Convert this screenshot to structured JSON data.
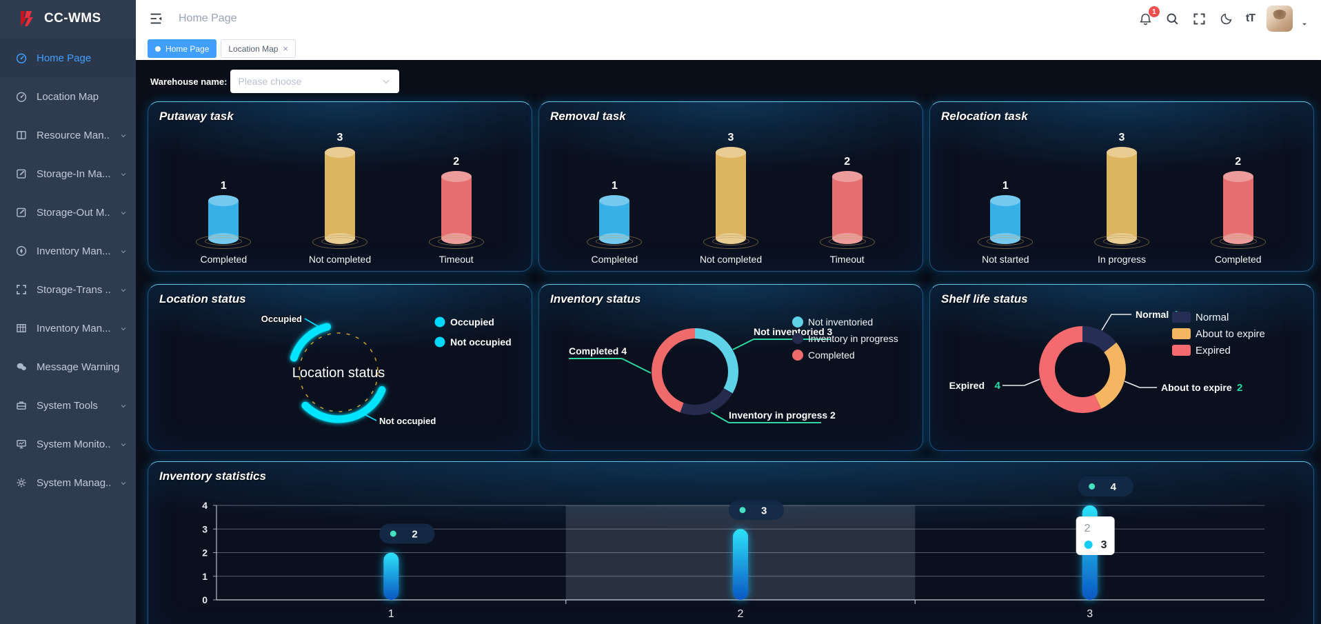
{
  "sidebar": {
    "logo_text": "CC-WMS",
    "items": [
      {
        "label": "Home Page",
        "icon": "gauge",
        "active": true,
        "expandable": false
      },
      {
        "label": "Location Map",
        "icon": "gauge",
        "active": false,
        "expandable": false
      },
      {
        "label": "Resource Man...",
        "icon": "book",
        "active": false,
        "expandable": true
      },
      {
        "label": "Storage-In Ma...",
        "icon": "edit",
        "active": false,
        "expandable": true
      },
      {
        "label": "Storage-Out M...",
        "icon": "edit",
        "active": false,
        "expandable": true
      },
      {
        "label": "Inventory Man...",
        "icon": "compass",
        "active": false,
        "expandable": true
      },
      {
        "label": "Storage-Trans ...",
        "icon": "expand",
        "active": false,
        "expandable": true
      },
      {
        "label": "Inventory Man...",
        "icon": "table",
        "active": false,
        "expandable": true
      },
      {
        "label": "Message Warning",
        "icon": "chat",
        "active": false,
        "expandable": false
      },
      {
        "label": "System Tools",
        "icon": "toolbox",
        "active": false,
        "expandable": true
      },
      {
        "label": "System Monito...",
        "icon": "monitor",
        "active": false,
        "expandable": true
      },
      {
        "label": "System Manag...",
        "icon": "gear",
        "active": false,
        "expandable": true
      }
    ]
  },
  "header": {
    "breadcrumb": "Home Page",
    "notification_count": "1",
    "font_size_icon_label": "tT"
  },
  "tabs": [
    {
      "label": "Home Page",
      "active": true,
      "closable": false
    },
    {
      "label": "Location Map",
      "active": false,
      "closable": true
    }
  ],
  "filter": {
    "label": "Warehouse name:",
    "placeholder": "Please choose"
  },
  "colors": {
    "accent": "#409eff",
    "sidebar_bg": "#2f3b4e",
    "panel_glow": "#1a9fd8",
    "badge_red": "#ef4f4f"
  },
  "chart_data": [
    {
      "id": "putaway_task",
      "type": "bar",
      "variant": "cylinder",
      "title": "Putaway task",
      "categories": [
        "Completed",
        "Not completed",
        "Timeout"
      ],
      "values": [
        1,
        3,
        2
      ],
      "ylim": [
        0,
        3
      ],
      "colors": [
        "#36b0e6",
        "#ddb45f",
        "#e56e6e"
      ]
    },
    {
      "id": "removal_task",
      "type": "bar",
      "variant": "cylinder",
      "title": "Removal task",
      "categories": [
        "Completed",
        "Not completed",
        "Timeout"
      ],
      "values": [
        1,
        3,
        2
      ],
      "ylim": [
        0,
        3
      ],
      "colors": [
        "#36b0e6",
        "#ddb45f",
        "#e56e6e"
      ]
    },
    {
      "id": "relocation_task",
      "type": "bar",
      "variant": "cylinder",
      "title": "Relocation task",
      "categories": [
        "Not started",
        "In progress",
        "Completed"
      ],
      "values": [
        1,
        3,
        2
      ],
      "ylim": [
        0,
        3
      ],
      "colors": [
        "#36b0e6",
        "#ddb45f",
        "#e56e6e"
      ]
    },
    {
      "id": "location_status",
      "type": "pie",
      "variant": "ring-arcs",
      "title": "Location status",
      "center_label": "Location status",
      "legend": [
        "Occupied",
        "Not occupied"
      ],
      "legend_color": "#00d9ff",
      "arc_color": "#00e4ff",
      "dashed_ring_color": "#c79a2e",
      "arcs": [
        {
          "label": "Occupied",
          "start_deg": -72,
          "end_deg": -14
        },
        {
          "label": "Not occupied",
          "start_deg": 112,
          "end_deg": 225
        }
      ]
    },
    {
      "id": "inventory_status",
      "type": "pie",
      "variant": "donut",
      "title": "Inventory status",
      "series": [
        {
          "label": "Not inventoried",
          "value": 3,
          "color": "#5ed2e6"
        },
        {
          "label": "Inventory in progress",
          "value": 2,
          "color": "#252b4d"
        },
        {
          "label": "Completed",
          "value": 4,
          "color": "#ef6a6b"
        }
      ],
      "callout_color": "#2fd8a0",
      "legend_position": "right"
    },
    {
      "id": "shelf_life_status",
      "type": "pie",
      "variant": "donut",
      "title": "Shelf life status",
      "series": [
        {
          "label": "Normal",
          "value": 1,
          "color": "#272e55"
        },
        {
          "label": "About to expire",
          "value": 2,
          "color": "#f5b662"
        },
        {
          "label": "Expired",
          "value": 4,
          "color": "#f46a6f"
        }
      ],
      "value_color": "#25e0a5",
      "legend_position": "right"
    },
    {
      "id": "inventory_statistics",
      "type": "bar",
      "variant": "capsule",
      "title": "Inventory statistics",
      "categories": [
        "1",
        "2",
        "3"
      ],
      "values": [
        2,
        3,
        4
      ],
      "ylim": [
        0,
        4
      ],
      "yticks": [
        0,
        1,
        2,
        3,
        4
      ],
      "point_labels": [
        "2",
        "3",
        "4"
      ],
      "point_dot_color": "#45e0c0",
      "highlight_band_category": "2",
      "tooltip": {
        "line1": "2",
        "marker_value": "3",
        "marker_color": "#18cdf2"
      },
      "bar_gradient": [
        "#2ee2f9",
        "#0a57c3"
      ]
    }
  ]
}
